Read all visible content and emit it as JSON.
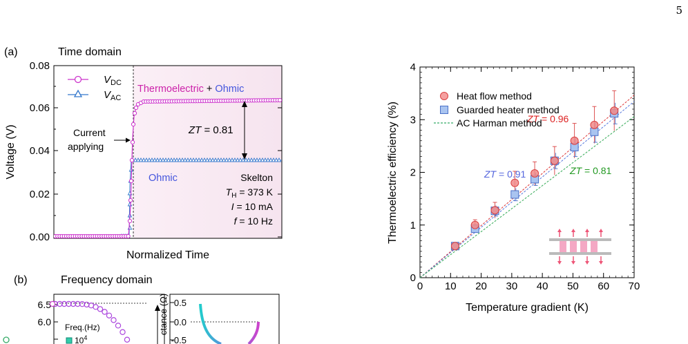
{
  "page": {
    "number": "5"
  },
  "panel_a": {
    "label": "(a)",
    "title": "Time domain",
    "ylabel": "Voltage (V)",
    "xlabel": "Normalized Time",
    "y_ticks": [
      "0.00",
      "0.02",
      "0.04",
      "0.06",
      "0.08"
    ],
    "legend": [
      {
        "name": "V",
        "sub": "DC",
        "color": "#cc33cc"
      },
      {
        "name": "V",
        "sub": "AC",
        "color": "#3377cc"
      }
    ],
    "annot_thermo": "Thermoelectric",
    "annot_plus": " + ",
    "annot_ohmic": "Ohmic",
    "annot_current_1": "Current",
    "annot_current_2": "applying",
    "annot_zt_prefix": "ZT",
    "annot_zt_value": " = 0.81",
    "annot_ohmic2": "Ohmic",
    "info_device": "Skelton",
    "info_th_sym": "T",
    "info_th_sub": "H",
    "info_th_val": " = 373 K",
    "info_i_sym": "I",
    "info_i_val": " = 10 mA",
    "info_f_sym": "f",
    "info_f_val": " = 10 Hz"
  },
  "panel_b": {
    "label": "(b)",
    "title": "Frequency domain",
    "left_y_ticks": [
      "6.5",
      "6.0"
    ],
    "freq_label": "Freq.(Hz)",
    "freq_value": "10",
    "freq_exp": "4",
    "right_ylabel": "ctance (Ω)",
    "right_y_ticks": [
      "0.5",
      "0.0",
      "-0.5"
    ]
  },
  "chart_data": {
    "type": "scatter",
    "title": "",
    "xlabel": "Temperature gradient (K)",
    "ylabel": "Thermoelectric efficiency (%)",
    "xlim": [
      0,
      70
    ],
    "ylim": [
      0,
      4
    ],
    "x_ticks": [
      "0",
      "10",
      "20",
      "30",
      "40",
      "50",
      "60",
      "70"
    ],
    "y_ticks": [
      "0",
      "1",
      "2",
      "3",
      "4"
    ],
    "legend_position": "top-left",
    "series": [
      {
        "name": "Heat flow method",
        "marker": "circle",
        "color": "#f08a8a",
        "edge": "#d94040",
        "x": [
          11.5,
          18,
          24.5,
          31,
          37.5,
          44,
          50.5,
          57,
          63.5
        ],
        "y": [
          0.6,
          1.0,
          1.28,
          1.8,
          1.98,
          2.22,
          2.6,
          2.9,
          3.17
        ],
        "err": [
          0.03,
          0.1,
          0.15,
          0.22,
          0.22,
          0.27,
          0.33,
          0.35,
          0.38
        ]
      },
      {
        "name": "Guarded heater method",
        "marker": "square",
        "color": "#a9c4f0",
        "edge": "#4a70c8",
        "x": [
          11.5,
          18,
          24.5,
          31,
          37.5,
          44,
          50.5,
          57,
          63.5
        ],
        "y": [
          0.6,
          0.93,
          1.27,
          1.58,
          1.87,
          2.22,
          2.48,
          2.77,
          3.12
        ],
        "err": [
          0.03,
          0.07,
          0.1,
          0.12,
          0.12,
          0.15,
          0.18,
          0.2,
          0.2
        ]
      },
      {
        "name": "AC Harman method",
        "marker": "dashed-line",
        "color": "#33aa66"
      }
    ],
    "fit_lines": [
      {
        "label": "ZT = 0.96",
        "color": "#dd3333",
        "slope": 0.0495
      },
      {
        "label": "ZT = 0.91",
        "color": "#5577dd",
        "slope": 0.0478
      },
      {
        "label": "ZT = 0.81",
        "color": "#33aa55",
        "slope": 0.0437
      }
    ],
    "annotations": [
      {
        "text": "ZT = 0.96",
        "color": "#dd2222",
        "x": 35,
        "y": 2.95
      },
      {
        "text": "ZT = 0.91",
        "color": "#5566dd",
        "x": 21,
        "y": 1.9
      },
      {
        "text": "ZT = 0.81",
        "color": "#229922",
        "x": 49,
        "y": 1.97
      }
    ]
  }
}
